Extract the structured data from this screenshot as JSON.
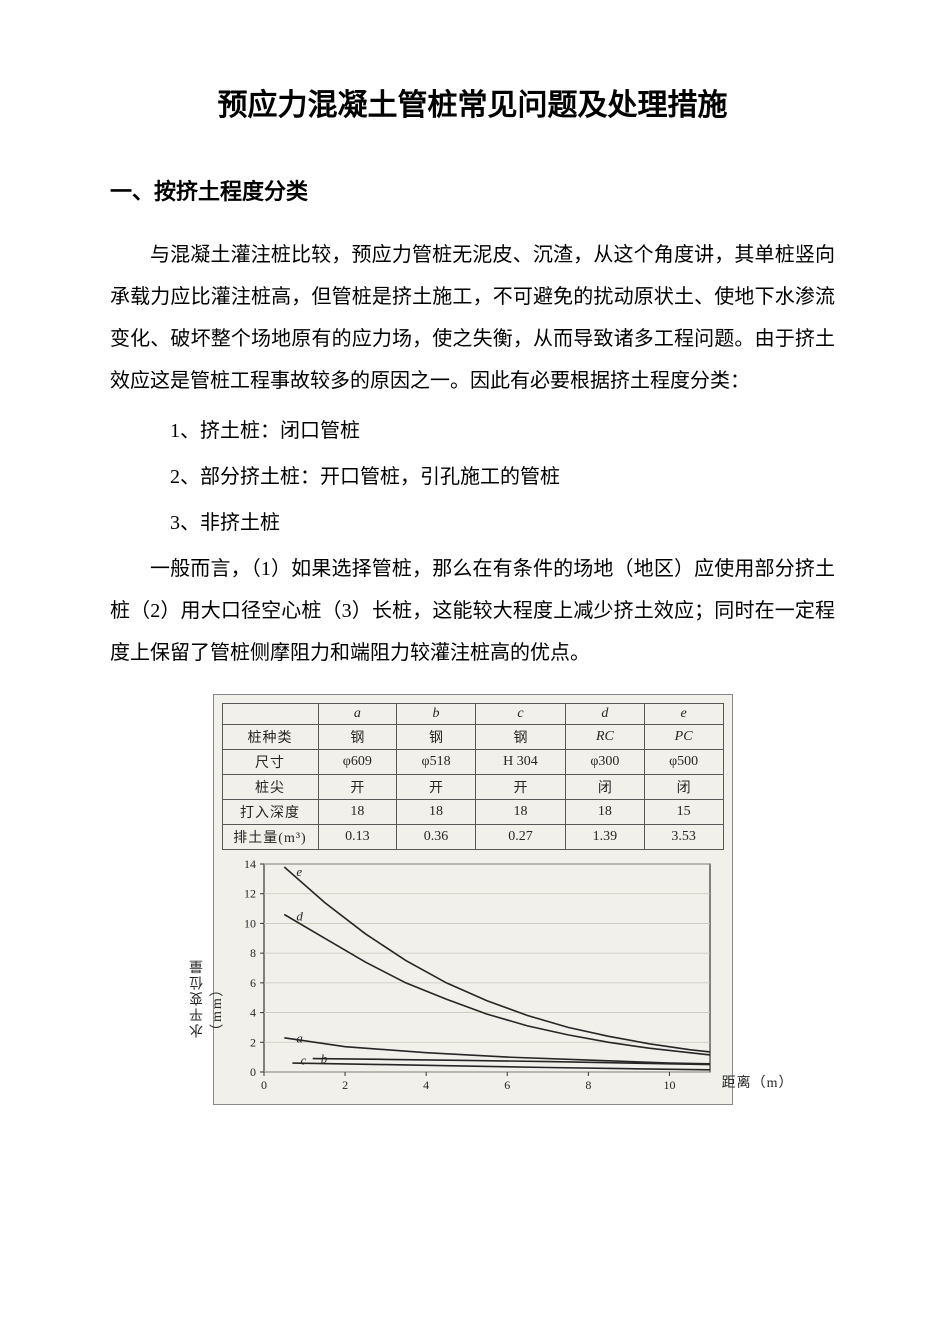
{
  "doc": {
    "title": "预应力混凝土管桩常见问题及处理措施",
    "section1_heading": "一、按挤土程度分类",
    "para1": "与混凝土灌注桩比较，预应力管桩无泥皮、沉渣，从这个角度讲，其单桩竖向承载力应比灌注桩高，但管桩是挤土施工，不可避免的扰动原状土、使地下水渗流变化、破坏整个场地原有的应力场，使之失衡，从而导致诸多工程问题。由于挤土效应这是管桩工程事故较多的原因之一。因此有必要根据挤土程度分类：",
    "item1": "1、挤土桩：闭口管桩",
    "item2": "2、部分挤土桩：开口管桩，引孔施工的管桩",
    "item3": "3、非挤土桩",
    "para2": "一般而言，（1）如果选择管桩，那么在有条件的场地（地区）应使用部分挤土桩（2）用大口径空心桩（3）长桩，这能较大程度上减少挤土效应；同时在一定程度上保留了管桩侧摩阻力和端阻力较灌注桩高的优点。"
  },
  "figure": {
    "table": {
      "row_headers": [
        "",
        "桩种类",
        "尺寸",
        "桩尖",
        "打入深度",
        "排土量(m³)"
      ],
      "col_letters": [
        "a",
        "b",
        "c",
        "d",
        "e"
      ],
      "rows": {
        "type": [
          "钢",
          "钢",
          "钢",
          "RC",
          "PC"
        ],
        "size": [
          "φ609",
          "φ518",
          "H 304",
          "φ300",
          "φ500"
        ],
        "tip": [
          "开",
          "开",
          "开",
          "闭",
          "闭"
        ],
        "depth": [
          "18",
          "18",
          "18",
          "18",
          "15"
        ],
        "volume": [
          "0.13",
          "0.36",
          "0.27",
          "1.39",
          "3.53"
        ]
      }
    },
    "chart": {
      "type": "line",
      "background_color": "#f4f2ed",
      "grid_color": "#cdc8bc",
      "axis_color": "#333333",
      "line_color": "#222222",
      "line_width": 1.6,
      "xlim": [
        0,
        11
      ],
      "ylim": [
        0,
        14
      ],
      "xticks": [
        0,
        2,
        4,
        6,
        8,
        10
      ],
      "yticks": [
        0,
        2,
        4,
        6,
        8,
        10,
        12,
        14
      ],
      "xlabel": "距离（m）",
      "ylabel": "水平变位量（mm）",
      "label_fontsize": 14,
      "tick_fontsize": 12,
      "series_label_positions": {
        "a": {
          "x": 0.8,
          "y": 2.0
        },
        "b": {
          "x": 1.4,
          "y": 0.6
        },
        "c": {
          "x": 0.9,
          "y": 0.5
        },
        "d": {
          "x": 0.8,
          "y": 10.2
        },
        "e": {
          "x": 0.8,
          "y": 13.2
        }
      },
      "series": {
        "a": [
          [
            0.5,
            2.3
          ],
          [
            2,
            1.7
          ],
          [
            4,
            1.3
          ],
          [
            6,
            1.0
          ],
          [
            8,
            0.8
          ],
          [
            10,
            0.6
          ],
          [
            11,
            0.55
          ]
        ],
        "b": [
          [
            1.2,
            0.9
          ],
          [
            3,
            0.85
          ],
          [
            5,
            0.78
          ],
          [
            7,
            0.7
          ],
          [
            9,
            0.6
          ],
          [
            11,
            0.5
          ]
        ],
        "c": [
          [
            0.7,
            0.6
          ],
          [
            3,
            0.5
          ],
          [
            5,
            0.4
          ],
          [
            7,
            0.3
          ],
          [
            9,
            0.22
          ],
          [
            11,
            0.15
          ]
        ],
        "d": [
          [
            0.5,
            10.6
          ],
          [
            1.5,
            9.0
          ],
          [
            2.5,
            7.4
          ],
          [
            3.5,
            6.0
          ],
          [
            4.5,
            4.9
          ],
          [
            5.5,
            3.9
          ],
          [
            6.5,
            3.1
          ],
          [
            7.5,
            2.5
          ],
          [
            8.5,
            2.0
          ],
          [
            9.5,
            1.6
          ],
          [
            10.5,
            1.3
          ],
          [
            11,
            1.15
          ]
        ],
        "e": [
          [
            0.5,
            13.8
          ],
          [
            1.5,
            11.4
          ],
          [
            2.5,
            9.3
          ],
          [
            3.5,
            7.5
          ],
          [
            4.5,
            6.0
          ],
          [
            5.5,
            4.8
          ],
          [
            6.5,
            3.8
          ],
          [
            7.5,
            3.0
          ],
          [
            8.5,
            2.4
          ],
          [
            9.5,
            1.9
          ],
          [
            10.5,
            1.5
          ],
          [
            11,
            1.35
          ]
        ]
      }
    }
  }
}
